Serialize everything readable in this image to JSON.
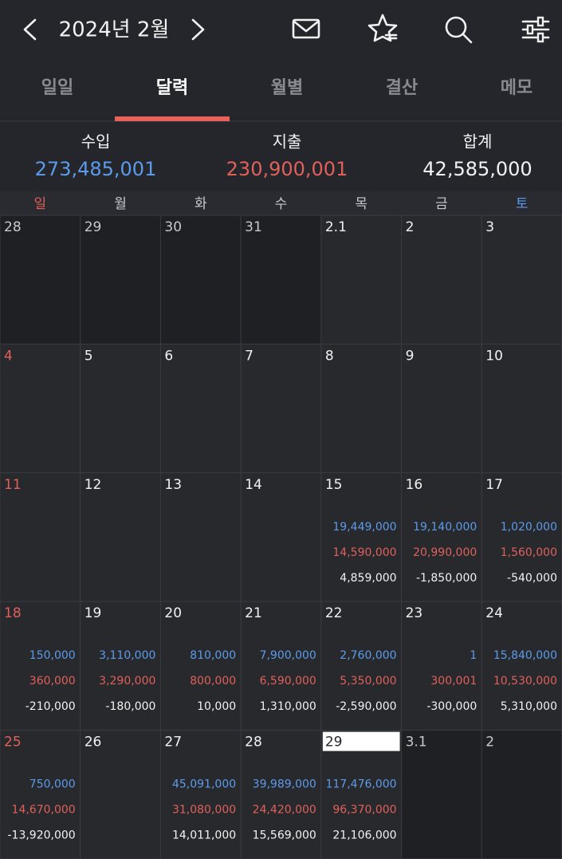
{
  "header": {
    "title": "2024년 2월"
  },
  "tabs": {
    "items": [
      "일일",
      "달력",
      "월별",
      "결산",
      "메모"
    ],
    "active": 1
  },
  "summary": {
    "income": {
      "label": "수입",
      "value": "273,485,001"
    },
    "expense": {
      "label": "지출",
      "value": "230,900,001"
    },
    "total": {
      "label": "합계",
      "value": "42,585,000"
    }
  },
  "weekdays": [
    "일",
    "월",
    "화",
    "수",
    "목",
    "금",
    "토"
  ],
  "weeks": [
    [
      {
        "day": "28"
      },
      {
        "day": "29"
      },
      {
        "day": "30"
      },
      {
        "day": "31"
      },
      {
        "day": "2.1"
      },
      {
        "day": "2"
      },
      {
        "day": "3"
      }
    ],
    [
      {
        "day": "4"
      },
      {
        "day": "5"
      },
      {
        "day": "6"
      },
      {
        "day": "7"
      },
      {
        "day": "8"
      },
      {
        "day": "9"
      },
      {
        "day": "10"
      }
    ],
    [
      {
        "day": "11"
      },
      {
        "day": "12"
      },
      {
        "day": "13"
      },
      {
        "day": "14"
      },
      {
        "day": "15",
        "income": "19,449,000",
        "expense": "14,590,000",
        "total": "4,859,000"
      },
      {
        "day": "16",
        "income": "19,140,000",
        "expense": "20,990,000",
        "total": "-1,850,000"
      },
      {
        "day": "17",
        "income": "1,020,000",
        "expense": "1,560,000",
        "total": "-540,000"
      }
    ],
    [
      {
        "day": "18",
        "income": "150,000",
        "expense": "360,000",
        "total": "-210,000"
      },
      {
        "day": "19",
        "income": "3,110,000",
        "expense": "3,290,000",
        "total": "-180,000"
      },
      {
        "day": "20",
        "income": "810,000",
        "expense": "800,000",
        "total": "10,000"
      },
      {
        "day": "21",
        "income": "7,900,000",
        "expense": "6,590,000",
        "total": "1,310,000"
      },
      {
        "day": "22",
        "income": "2,760,000",
        "expense": "5,350,000",
        "total": "-2,590,000"
      },
      {
        "day": "23",
        "income": "1",
        "expense": "300,001",
        "total": "-300,000"
      },
      {
        "day": "24",
        "income": "15,840,000",
        "expense": "10,530,000",
        "total": "5,310,000"
      }
    ],
    [
      {
        "day": "25",
        "income": "750,000",
        "expense": "14,670,000",
        "total": "-13,920,000"
      },
      {
        "day": "26"
      },
      {
        "day": "27",
        "income": "45,091,000",
        "expense": "31,080,000",
        "total": "14,011,000"
      },
      {
        "day": "28",
        "income": "39,989,000",
        "expense": "24,420,000",
        "total": "15,569,000"
      },
      {
        "day": "29",
        "income": "117,476,000",
        "expense": "96,370,000",
        "total": "21,106,000",
        "selected": true
      },
      {
        "day": "3.1"
      },
      {
        "day": "2"
      }
    ]
  ]
}
